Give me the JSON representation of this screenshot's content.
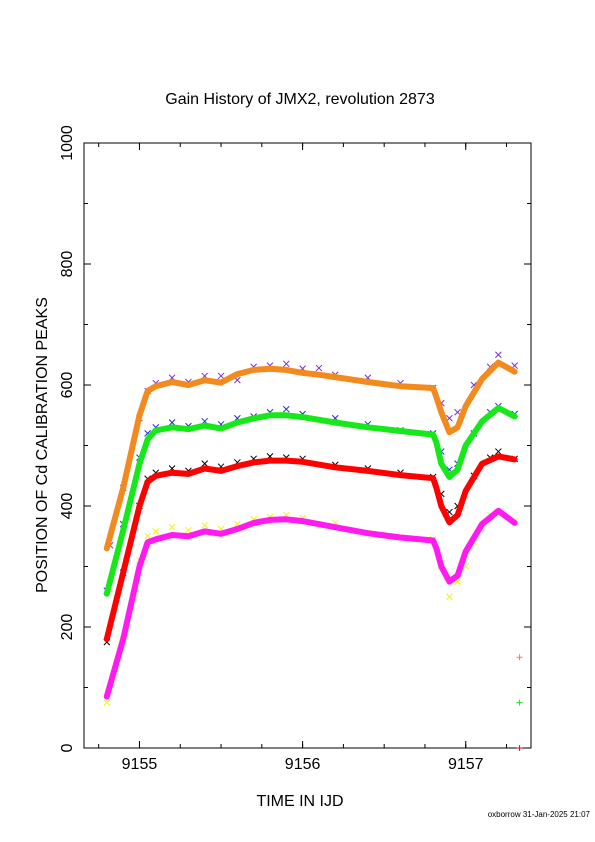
{
  "chart_data": {
    "type": "scatter",
    "title": "Gain History of JMX2, revolution 2873",
    "xlabel": "TIME IN IJD",
    "ylabel": "POSITION OF Cd CALIBRATION PEAKS",
    "xlim": [
      9154.66,
      9157.4
    ],
    "ylim": [
      0,
      1000
    ],
    "x_ticks": [
      9155,
      9156,
      9157
    ],
    "y_ticks": [
      0,
      200,
      400,
      600,
      800,
      1000
    ],
    "footer": "oxborrow 31-Jan-2025 21:07",
    "colors": {
      "purple": "#7b2fd6",
      "orange": "#f28a1e",
      "blue": "#1f2ad6",
      "green": "#17e81a",
      "black": "#000000",
      "red": "#ff0000",
      "yellow": "#f4f20c",
      "magenta": "#ff1af0"
    },
    "series": [
      {
        "color": "purple",
        "marker": "x",
        "x": [
          9154.82,
          9154.9,
          9155.0,
          9155.05,
          9155.1,
          9155.2,
          9155.3,
          9155.4,
          9155.5,
          9155.6,
          9155.7,
          9155.8,
          9155.9,
          9156.0,
          9156.1,
          9156.2,
          9156.4,
          9156.6,
          9156.8,
          9156.85,
          9156.9,
          9156.95,
          9157.05,
          9157.15,
          9157.2,
          9157.3
        ],
        "y": [
          335,
          430,
          545,
          590,
          603,
          612,
          605,
          615,
          615,
          608,
          630,
          632,
          635,
          627,
          628,
          617,
          612,
          603,
          595,
          570,
          545,
          555,
          600,
          630,
          650,
          632
        ]
      },
      {
        "color": "orange",
        "marker": "line",
        "x": [
          9154.8,
          9154.9,
          9155.0,
          9155.05,
          9155.1,
          9155.2,
          9155.3,
          9155.4,
          9155.5,
          9155.6,
          9155.7,
          9155.8,
          9155.9,
          9156.0,
          9156.1,
          9156.2,
          9156.4,
          9156.6,
          9156.8,
          9156.82,
          9156.85,
          9156.9,
          9156.95,
          9157.0,
          9157.1,
          9157.2,
          9157.3
        ],
        "y": [
          330,
          430,
          550,
          590,
          598,
          605,
          600,
          608,
          604,
          618,
          625,
          627,
          625,
          620,
          617,
          613,
          605,
          598,
          595,
          580,
          555,
          522,
          530,
          565,
          610,
          637,
          622
        ]
      },
      {
        "color": "blue",
        "marker": "x",
        "x": [
          9154.8,
          9154.9,
          9155.0,
          9155.05,
          9155.1,
          9155.2,
          9155.3,
          9155.4,
          9155.5,
          9155.6,
          9155.7,
          9155.8,
          9155.9,
          9156.0,
          9156.2,
          9156.4,
          9156.6,
          9156.8,
          9156.85,
          9156.9,
          9156.95,
          9157.05,
          9157.15,
          9157.2,
          9157.3
        ],
        "y": [
          260,
          370,
          480,
          520,
          530,
          538,
          532,
          540,
          535,
          545,
          548,
          555,
          560,
          552,
          545,
          535,
          525,
          520,
          490,
          460,
          470,
          520,
          555,
          565,
          552
        ]
      },
      {
        "color": "green",
        "marker": "line",
        "x": [
          9154.8,
          9154.9,
          9155.0,
          9155.05,
          9155.1,
          9155.2,
          9155.3,
          9155.4,
          9155.5,
          9155.6,
          9155.7,
          9155.8,
          9155.9,
          9156.0,
          9156.2,
          9156.4,
          9156.6,
          9156.8,
          9156.82,
          9156.85,
          9156.9,
          9156.95,
          9157.0,
          9157.1,
          9157.2,
          9157.3
        ],
        "y": [
          255,
          360,
          470,
          510,
          525,
          530,
          527,
          533,
          528,
          538,
          545,
          550,
          550,
          547,
          538,
          530,
          524,
          518,
          505,
          470,
          448,
          460,
          500,
          540,
          562,
          548
        ]
      },
      {
        "color": "black",
        "marker": "x",
        "x": [
          9154.8,
          9154.9,
          9155.0,
          9155.05,
          9155.1,
          9155.2,
          9155.3,
          9155.4,
          9155.5,
          9155.6,
          9155.7,
          9155.8,
          9155.9,
          9156.0,
          9156.2,
          9156.4,
          9156.6,
          9156.8,
          9156.85,
          9156.9,
          9156.95,
          9157.05,
          9157.15,
          9157.2,
          9157.3
        ],
        "y": [
          175,
          290,
          400,
          445,
          455,
          462,
          458,
          470,
          465,
          472,
          478,
          482,
          480,
          478,
          468,
          462,
          455,
          448,
          420,
          390,
          400,
          450,
          480,
          490,
          478
        ]
      },
      {
        "color": "red",
        "marker": "line",
        "x": [
          9154.8,
          9154.9,
          9155.0,
          9155.05,
          9155.1,
          9155.2,
          9155.3,
          9155.4,
          9155.5,
          9155.6,
          9155.7,
          9155.8,
          9155.9,
          9156.0,
          9156.2,
          9156.4,
          9156.6,
          9156.8,
          9156.82,
          9156.85,
          9156.9,
          9156.95,
          9157.0,
          9157.1,
          9157.2,
          9157.3
        ],
        "y": [
          180,
          290,
          400,
          440,
          450,
          455,
          453,
          462,
          458,
          466,
          472,
          475,
          475,
          473,
          464,
          458,
          451,
          446,
          430,
          400,
          373,
          385,
          425,
          470,
          482,
          477
        ]
      },
      {
        "color": "yellow",
        "marker": "x",
        "x": [
          9154.8,
          9154.9,
          9155.0,
          9155.05,
          9155.1,
          9155.2,
          9155.3,
          9155.4,
          9155.5,
          9155.6,
          9155.7,
          9155.8,
          9155.9,
          9156.0,
          9156.2,
          9156.4,
          9156.6,
          9156.8,
          9156.85,
          9156.9,
          9156.95,
          9157.0,
          9157.05,
          9157.15,
          9157.2,
          9157.3
        ],
        "y": [
          75,
          180,
          310,
          350,
          358,
          365,
          360,
          368,
          362,
          370,
          378,
          382,
          385,
          380,
          372,
          355,
          348,
          345,
          300,
          250,
          275,
          300,
          340,
          385,
          390,
          375
        ]
      },
      {
        "color": "magenta",
        "marker": "line",
        "x": [
          9154.8,
          9154.9,
          9155.0,
          9155.05,
          9155.1,
          9155.2,
          9155.3,
          9155.4,
          9155.5,
          9155.6,
          9155.7,
          9155.8,
          9155.9,
          9156.0,
          9156.2,
          9156.4,
          9156.6,
          9156.8,
          9156.82,
          9156.85,
          9156.9,
          9156.95,
          9157.0,
          9157.1,
          9157.2,
          9157.3
        ],
        "y": [
          85,
          180,
          300,
          340,
          345,
          352,
          350,
          358,
          354,
          362,
          372,
          377,
          378,
          375,
          365,
          355,
          348,
          343,
          330,
          300,
          275,
          285,
          325,
          370,
          392,
          372
        ]
      },
      {
        "color": "orange",
        "marker": "+",
        "x": [
          9157.33
        ],
        "y": [
          150
        ]
      },
      {
        "color": "green",
        "marker": "+",
        "x": [
          9157.33
        ],
        "y": [
          75
        ]
      },
      {
        "color": "red",
        "marker": "+",
        "x": [
          9157.33
        ],
        "y": [
          0
        ]
      }
    ]
  }
}
